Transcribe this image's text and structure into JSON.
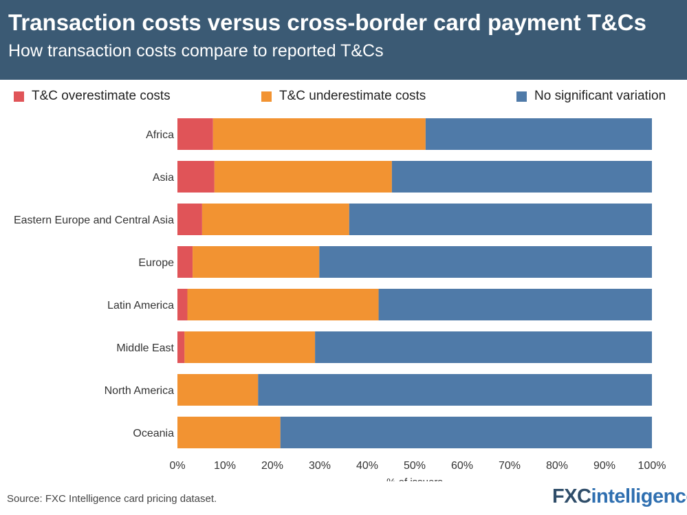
{
  "header": {
    "title": "Transaction costs versus cross-border card payment T&Cs",
    "subtitle": "How transaction costs compare to reported T&Cs"
  },
  "legend": [
    {
      "label": "T&C overestimate costs",
      "color": "#e05458"
    },
    {
      "label": "T&C underestimate costs",
      "color": "#f29332"
    },
    {
      "label": "No significant variation",
      "color": "#4f7aa8"
    }
  ],
  "chart_data": {
    "type": "bar",
    "orientation": "horizontal",
    "stacked": true,
    "categories": [
      "Africa",
      "Asia",
      "Eastern Europe and Central Asia",
      "Europe",
      "Latin America",
      "Middle East",
      "North America",
      "Oceania"
    ],
    "series": [
      {
        "name": "T&C overestimate costs",
        "color": "#e05458",
        "values": [
          7.5,
          7.8,
          5.2,
          3.2,
          2.1,
          1.5,
          0,
          0
        ]
      },
      {
        "name": "T&C underestimate costs",
        "color": "#f29332",
        "values": [
          44.8,
          37.4,
          31.0,
          26.7,
          40.3,
          27.5,
          17.0,
          21.7
        ]
      },
      {
        "name": "No significant variation",
        "color": "#4f7aa8",
        "values": [
          47.7,
          54.8,
          63.8,
          70.1,
          57.6,
          71.0,
          83.0,
          78.3
        ]
      }
    ],
    "xlabel": "% of issuers",
    "ylabel": "",
    "xlim": [
      0,
      100
    ],
    "xticks": [
      "0%",
      "10%",
      "20%",
      "30%",
      "40%",
      "50%",
      "60%",
      "70%",
      "80%",
      "90%",
      "100%"
    ],
    "grid": false,
    "legend_position": "top"
  },
  "footer": {
    "source": "Source: FXC Intelligence card pricing dataset.",
    "logo_fx": "FXC",
    "logo_rest": "intelligence",
    "logo_tm": "™"
  }
}
